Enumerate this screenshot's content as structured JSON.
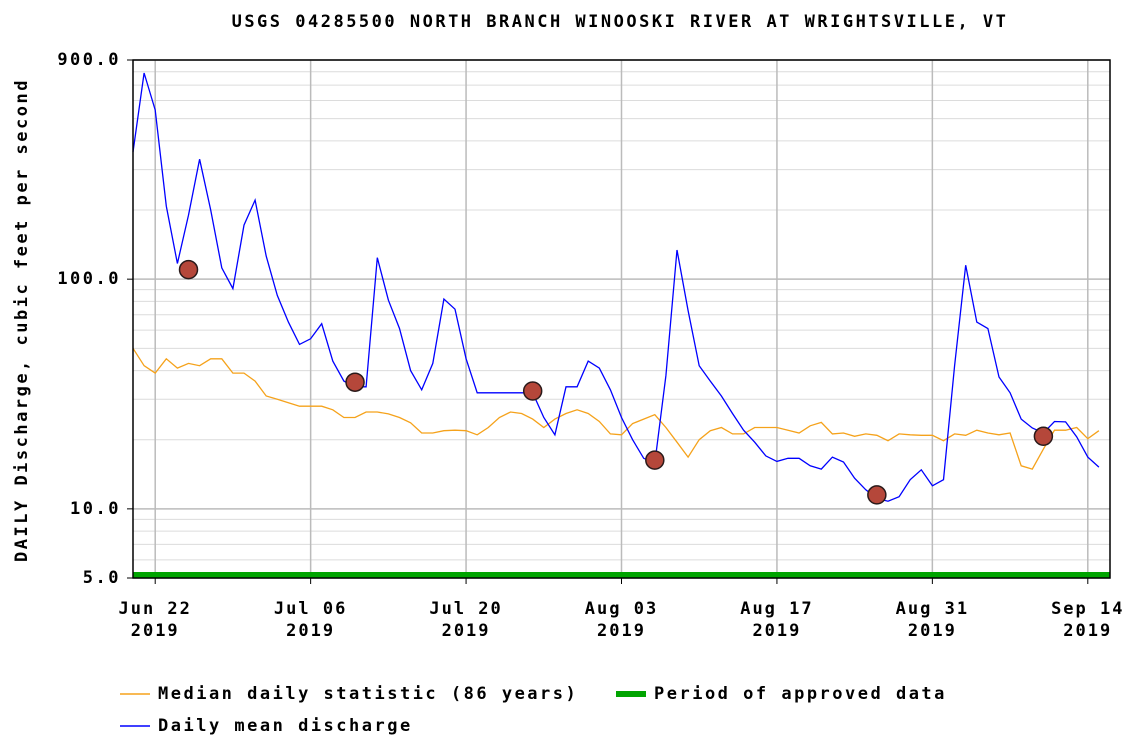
{
  "chart_data": {
    "type": "line",
    "title": "USGS 04285500 NORTH BRANCH WINOOSKI RIVER AT WRIGHTSVILLE, VT",
    "y_label": "DAILY Discharge, cubic feet per second",
    "log_y": true,
    "grid": true,
    "legend_position": "bottom",
    "x_start": "2019-06-20",
    "ylim": [
      5,
      900
    ],
    "yticks": [
      {
        "value": 5,
        "label": "5.0"
      },
      {
        "value": 10,
        "label": "10.0"
      },
      {
        "value": 100,
        "label": "100.0"
      },
      {
        "value": 900,
        "label": "900.0"
      }
    ],
    "minor_yticks": [
      6,
      7,
      8,
      9,
      20,
      30,
      40,
      50,
      60,
      70,
      80,
      90,
      200,
      300,
      400,
      500,
      600,
      700,
      800
    ],
    "xlim": [
      "2019-06-20",
      "2019-09-16"
    ],
    "xticks": [
      {
        "value": "2019-06-22",
        "label": "Jun 22\n2019"
      },
      {
        "value": "2019-07-06",
        "label": "Jul 06\n2019"
      },
      {
        "value": "2019-07-20",
        "label": "Jul 20\n2019"
      },
      {
        "value": "2019-08-03",
        "label": "Aug 03\n2019"
      },
      {
        "value": "2019-08-17",
        "label": "Aug 17\n2019"
      },
      {
        "value": "2019-08-31",
        "label": "Aug 31\n2019"
      },
      {
        "value": "2019-09-14",
        "label": "Sep 14\n2019"
      }
    ],
    "series": [
      {
        "name": "Median daily statistic (86 years)",
        "color": "#f5a21b",
        "values": [
          50,
          42,
          39,
          45,
          41,
          43,
          42,
          45,
          45,
          39,
          39,
          36,
          31,
          30,
          29,
          28,
          28,
          28,
          27,
          25,
          25,
          26.4,
          26.4,
          25.9,
          25,
          23.7,
          21.4,
          21.4,
          21.9,
          22,
          21.9,
          21,
          22.6,
          25,
          26.4,
          26,
          24.6,
          22.6,
          24.6,
          26,
          27,
          26,
          24,
          21.2,
          21,
          23.5,
          24.6,
          25.7,
          22.6,
          19.5,
          16.8,
          20,
          21.9,
          22.6,
          21.2,
          21.2,
          22.6,
          22.6,
          22.6,
          22,
          21.4,
          23,
          23.8,
          21.2,
          21.4,
          20.7,
          21.2,
          20.9,
          19.8,
          21.2,
          21,
          20.9,
          20.9,
          19.8,
          21.2,
          20.9,
          22,
          21.4,
          21,
          21.4,
          15.4,
          14.9,
          18.2,
          22,
          22,
          22.6,
          20.2,
          21.9
        ]
      },
      {
        "name": "Daily mean discharge",
        "color": "#0000ff",
        "values": [
          358,
          790,
          545,
          208,
          117,
          190,
          333,
          200,
          112,
          91,
          172,
          221,
          126,
          85,
          65,
          52,
          55,
          64,
          44,
          36,
          34,
          34,
          124,
          81,
          61,
          40,
          33,
          43,
          82,
          74,
          45,
          32,
          32,
          32,
          32,
          32,
          32,
          25,
          21,
          34,
          34,
          44,
          41,
          33,
          25,
          20,
          16.6,
          15.8,
          38,
          134,
          73,
          42,
          36,
          31,
          26,
          22,
          19.5,
          17,
          16.1,
          16.6,
          16.6,
          15.4,
          14.9,
          16.8,
          16,
          13.6,
          12.1,
          11.1,
          10.8,
          11.3,
          13.4,
          14.8,
          12.6,
          13.4,
          42,
          115,
          65,
          61,
          37.5,
          32,
          24.6,
          22.5,
          21.4,
          24,
          23.9,
          20.6,
          16.8,
          15.2
        ]
      }
    ],
    "approved_period": {
      "name": "Period of approved data",
      "color": "#00a400",
      "x": [
        "2019-06-20",
        "2019-09-16"
      ]
    },
    "markers": {
      "color": "#b5473a",
      "x": [
        "2019-06-25",
        "2019-07-10",
        "2019-07-26",
        "2019-08-06",
        "2019-08-26",
        "2019-09-10"
      ],
      "values": [
        110,
        35.6,
        32.6,
        16.3,
        11.5,
        20.7
      ]
    }
  }
}
